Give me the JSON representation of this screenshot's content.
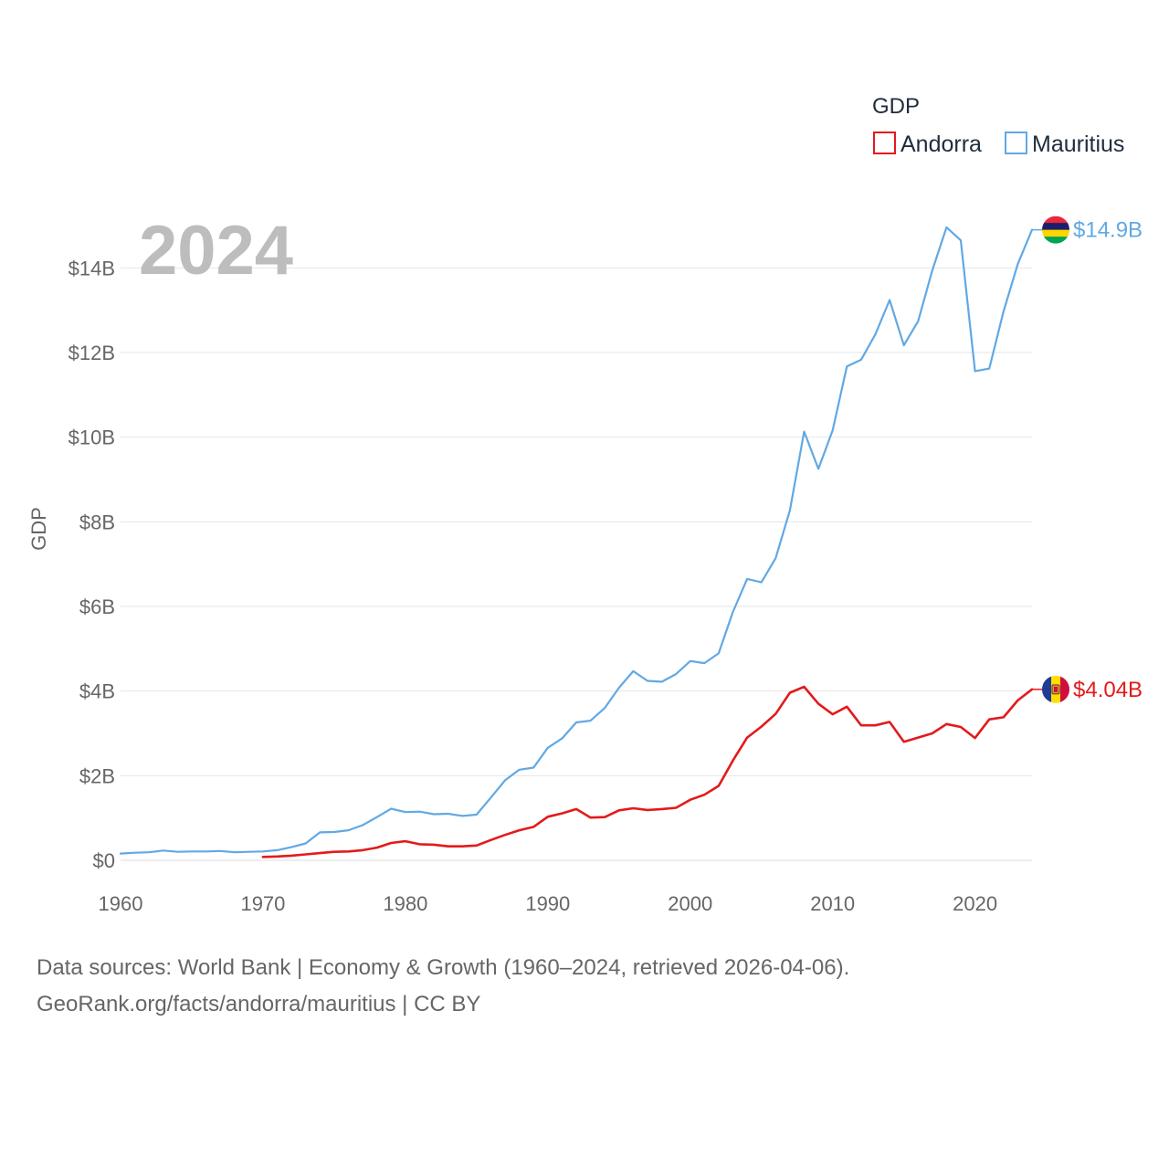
{
  "chart_data": {
    "type": "line",
    "title": "",
    "year_label": "2024",
    "xlabel": "",
    "ylabel": "GDP",
    "legend_title": "GDP",
    "legend_position": "top-right",
    "xlim": [
      1960,
      2024
    ],
    "ylim": [
      0,
      15
    ],
    "x_ticks": [
      1960,
      1970,
      1980,
      1990,
      2000,
      2010,
      2020
    ],
    "x_tick_labels": [
      "1960",
      "1970",
      "1980",
      "1990",
      "2000",
      "2010",
      "2020"
    ],
    "y_ticks": [
      0,
      2,
      4,
      6,
      8,
      10,
      12,
      14
    ],
    "y_tick_labels": [
      "$0",
      "$2B",
      "$4B",
      "$6B",
      "$8B",
      "$10B",
      "$12B",
      "$14B"
    ],
    "grid": true,
    "series": [
      {
        "name": "Andorra",
        "color": "#e31a1c",
        "end_label": "$4.04B",
        "flag": "andorra-flag",
        "points": [
          [
            1970,
            0.08
          ],
          [
            1971,
            0.09
          ],
          [
            1972,
            0.11
          ],
          [
            1973,
            0.14
          ],
          [
            1974,
            0.17
          ],
          [
            1975,
            0.2
          ],
          [
            1976,
            0.21
          ],
          [
            1977,
            0.24
          ],
          [
            1978,
            0.3
          ],
          [
            1979,
            0.41
          ],
          [
            1980,
            0.45
          ],
          [
            1981,
            0.38
          ],
          [
            1982,
            0.37
          ],
          [
            1983,
            0.33
          ],
          [
            1984,
            0.33
          ],
          [
            1985,
            0.35
          ],
          [
            1986,
            0.48
          ],
          [
            1987,
            0.6
          ],
          [
            1988,
            0.71
          ],
          [
            1989,
            0.79
          ],
          [
            1990,
            1.03
          ],
          [
            1991,
            1.11
          ],
          [
            1992,
            1.21
          ],
          [
            1993,
            1.01
          ],
          [
            1994,
            1.02
          ],
          [
            1995,
            1.18
          ],
          [
            1996,
            1.23
          ],
          [
            1997,
            1.19
          ],
          [
            1998,
            1.21
          ],
          [
            1999,
            1.24
          ],
          [
            2000,
            1.43
          ],
          [
            2001,
            1.55
          ],
          [
            2002,
            1.76
          ],
          [
            2003,
            2.36
          ],
          [
            2004,
            2.9
          ],
          [
            2005,
            3.16
          ],
          [
            2006,
            3.46
          ],
          [
            2007,
            3.96
          ],
          [
            2008,
            4.1
          ],
          [
            2009,
            3.7
          ],
          [
            2010,
            3.45
          ],
          [
            2011,
            3.63
          ],
          [
            2012,
            3.19
          ],
          [
            2013,
            3.19
          ],
          [
            2014,
            3.27
          ],
          [
            2015,
            2.8
          ],
          [
            2016,
            2.9
          ],
          [
            2017,
            3.0
          ],
          [
            2018,
            3.22
          ],
          [
            2019,
            3.15
          ],
          [
            2020,
            2.89
          ],
          [
            2021,
            3.33
          ],
          [
            2022,
            3.38
          ],
          [
            2023,
            3.78
          ],
          [
            2024,
            4.04
          ]
        ]
      },
      {
        "name": "Mauritius",
        "color": "#62a8e3",
        "end_label": "$14.9B",
        "flag": "mauritius-flag",
        "points": [
          [
            1960,
            0.16
          ],
          [
            1961,
            0.18
          ],
          [
            1962,
            0.19
          ],
          [
            1963,
            0.23
          ],
          [
            1964,
            0.2
          ],
          [
            1965,
            0.21
          ],
          [
            1966,
            0.21
          ],
          [
            1967,
            0.22
          ],
          [
            1968,
            0.19
          ],
          [
            1969,
            0.2
          ],
          [
            1970,
            0.21
          ],
          [
            1971,
            0.24
          ],
          [
            1972,
            0.31
          ],
          [
            1973,
            0.4
          ],
          [
            1974,
            0.66
          ],
          [
            1975,
            0.67
          ],
          [
            1976,
            0.71
          ],
          [
            1977,
            0.83
          ],
          [
            1978,
            1.02
          ],
          [
            1979,
            1.22
          ],
          [
            1980,
            1.14
          ],
          [
            1981,
            1.15
          ],
          [
            1982,
            1.09
          ],
          [
            1983,
            1.1
          ],
          [
            1984,
            1.05
          ],
          [
            1985,
            1.08
          ],
          [
            1986,
            1.48
          ],
          [
            1987,
            1.89
          ],
          [
            1988,
            2.14
          ],
          [
            1989,
            2.19
          ],
          [
            1990,
            2.66
          ],
          [
            1991,
            2.88
          ],
          [
            1992,
            3.26
          ],
          [
            1993,
            3.3
          ],
          [
            1994,
            3.6
          ],
          [
            1995,
            4.08
          ],
          [
            1996,
            4.47
          ],
          [
            1997,
            4.24
          ],
          [
            1998,
            4.22
          ],
          [
            1999,
            4.4
          ],
          [
            2000,
            4.71
          ],
          [
            2001,
            4.66
          ],
          [
            2002,
            4.89
          ],
          [
            2003,
            5.87
          ],
          [
            2004,
            6.65
          ],
          [
            2005,
            6.57
          ],
          [
            2006,
            7.14
          ],
          [
            2007,
            8.27
          ],
          [
            2008,
            10.13
          ],
          [
            2009,
            9.25
          ],
          [
            2010,
            10.16
          ],
          [
            2011,
            11.67
          ],
          [
            2012,
            11.83
          ],
          [
            2013,
            12.43
          ],
          [
            2014,
            13.24
          ],
          [
            2015,
            12.17
          ],
          [
            2016,
            12.74
          ],
          [
            2017,
            13.94
          ],
          [
            2018,
            14.96
          ],
          [
            2019,
            14.65
          ],
          [
            2020,
            11.56
          ],
          [
            2021,
            11.62
          ],
          [
            2022,
            12.97
          ],
          [
            2023,
            14.09
          ],
          [
            2024,
            14.9
          ]
        ]
      }
    ]
  },
  "footer": {
    "line1": "Data sources: World Bank | Economy & Growth (1960–2024, retrieved 2026-04-06).",
    "line2": "GeoRank.org/facts/andorra/mauritius | CC BY"
  }
}
